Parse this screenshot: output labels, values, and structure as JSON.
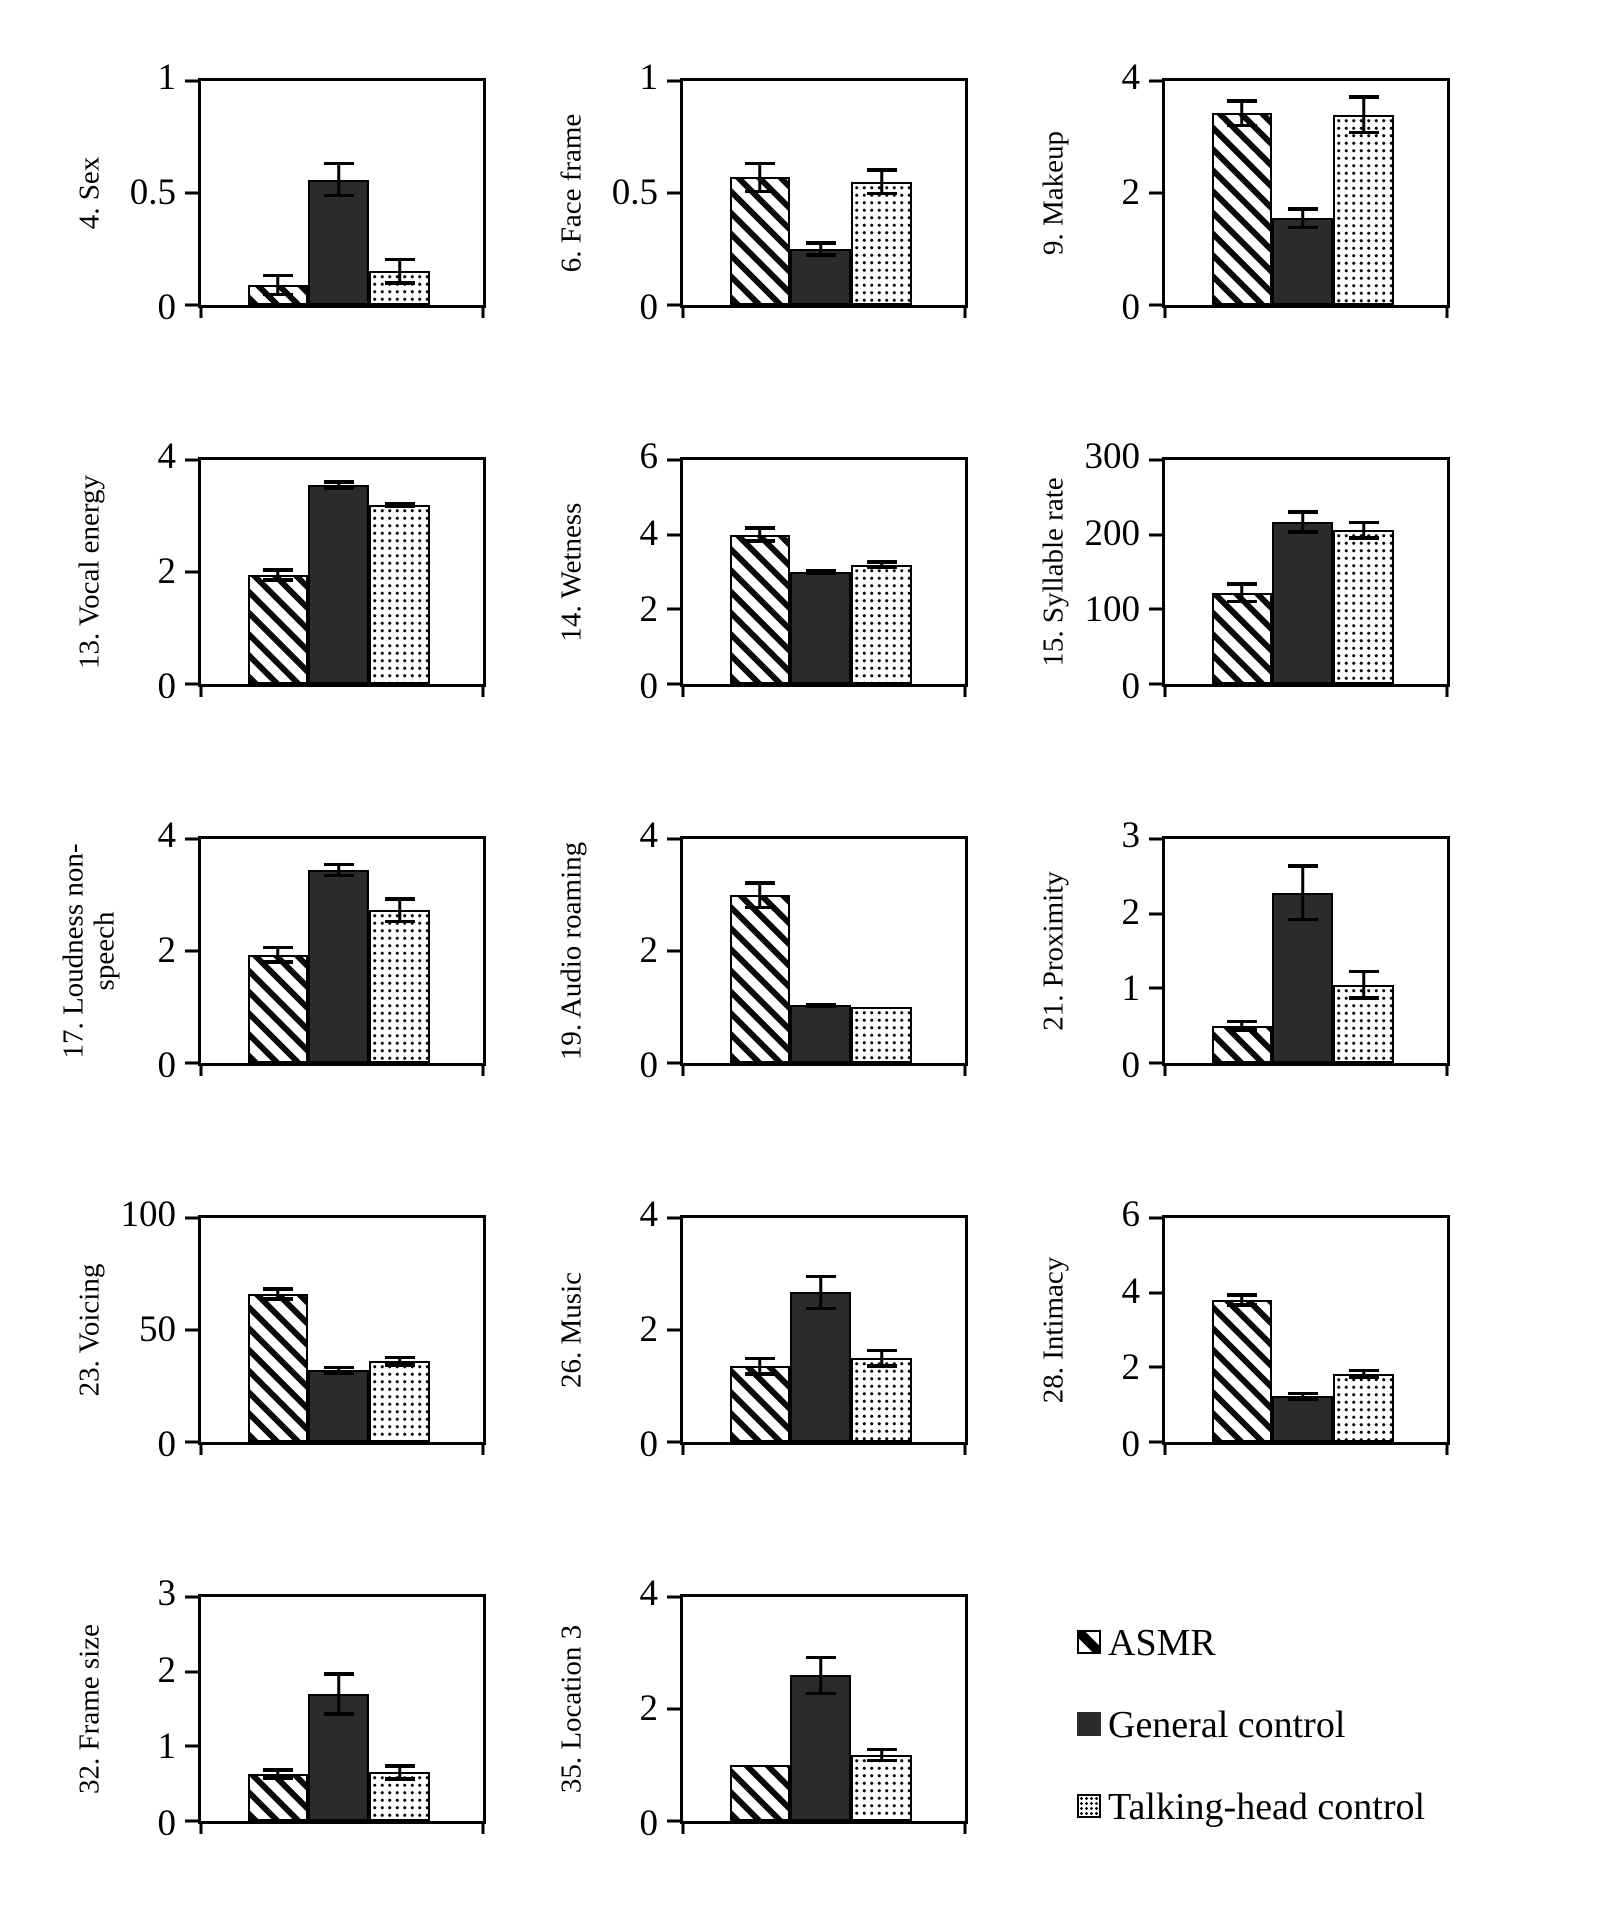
{
  "colors": {
    "ink": "#000000",
    "bar_dark": "#2b2b2b",
    "background": "#ffffff"
  },
  "series": [
    {
      "name": "ASMR",
      "pattern": "hatch"
    },
    {
      "name": "General control",
      "pattern": "solid"
    },
    {
      "name": "Talking-head control",
      "pattern": "dots"
    }
  ],
  "legend": {
    "items": [
      "ASMR",
      "General control",
      "Talking-head control"
    ],
    "position": "bottom-right"
  },
  "chart_data": [
    {
      "type": "bar",
      "label": [
        "4. Sex"
      ],
      "ylim": [
        0,
        1
      ],
      "yticks": [
        {
          "v": 1,
          "label": "1"
        },
        {
          "v": 0.5,
          "label": "0.5"
        },
        {
          "v": 0,
          "label": "0"
        }
      ],
      "values": [
        0.09,
        0.56,
        0.15
      ],
      "errors": [
        0.05,
        0.08,
        0.06
      ]
    },
    {
      "type": "bar",
      "label": [
        "6. Face frame"
      ],
      "ylim": [
        0,
        1
      ],
      "yticks": [
        {
          "v": 1,
          "label": "1"
        },
        {
          "v": 0.5,
          "label": "0.5"
        },
        {
          "v": 0,
          "label": "0"
        }
      ],
      "values": [
        0.57,
        0.25,
        0.55
      ],
      "errors": [
        0.07,
        0.035,
        0.06
      ]
    },
    {
      "type": "bar",
      "label": [
        "9. Makeup"
      ],
      "ylim": [
        0,
        4
      ],
      "yticks": [
        {
          "v": 4,
          "label": "4"
        },
        {
          "v": 2,
          "label": "2"
        },
        {
          "v": 0,
          "label": "0"
        }
      ],
      "values": [
        3.42,
        1.55,
        3.4
      ],
      "errors": [
        0.25,
        0.2,
        0.35
      ]
    },
    {
      "type": "bar",
      "label": [
        "13. Vocal energy"
      ],
      "ylim": [
        0,
        4
      ],
      "yticks": [
        {
          "v": 4,
          "label": "4"
        },
        {
          "v": 2,
          "label": "2"
        },
        {
          "v": 0,
          "label": "0"
        }
      ],
      "values": [
        1.95,
        3.55,
        3.2
      ],
      "errors": [
        0.12,
        0.09,
        0.05
      ]
    },
    {
      "type": "bar",
      "label": [
        "14. Wetness"
      ],
      "ylim": [
        0,
        6
      ],
      "yticks": [
        {
          "v": 6,
          "label": "6"
        },
        {
          "v": 4,
          "label": "4"
        },
        {
          "v": 2,
          "label": "2"
        },
        {
          "v": 0,
          "label": "0"
        }
      ],
      "values": [
        4.0,
        3.0,
        3.2
      ],
      "errors": [
        0.22,
        0.07,
        0.12
      ]
    },
    {
      "type": "bar",
      "label": [
        "15. Syllable rate"
      ],
      "ylim": [
        0,
        300
      ],
      "yticks": [
        {
          "v": 300,
          "label": "300"
        },
        {
          "v": 200,
          "label": "200"
        },
        {
          "v": 100,
          "label": "100"
        },
        {
          "v": 0,
          "label": "0"
        }
      ],
      "values": [
        122,
        217,
        206
      ],
      "errors": [
        14,
        16,
        13
      ]
    },
    {
      "type": "bar",
      "label": [
        "17. Loudness non-",
        "speech"
      ],
      "ylim": [
        0,
        4
      ],
      "yticks": [
        {
          "v": 4,
          "label": "4"
        },
        {
          "v": 2,
          "label": "2"
        },
        {
          "v": 0,
          "label": "0"
        }
      ],
      "values": [
        1.93,
        3.45,
        2.73
      ],
      "errors": [
        0.16,
        0.13,
        0.23
      ]
    },
    {
      "type": "bar",
      "label": [
        "19. Audio roaming"
      ],
      "ylim": [
        0,
        4
      ],
      "yticks": [
        {
          "v": 4,
          "label": "4"
        },
        {
          "v": 2,
          "label": "2"
        },
        {
          "v": 0,
          "label": "0"
        }
      ],
      "values": [
        3.0,
        1.03,
        1.0
      ],
      "errors": [
        0.25,
        0.05,
        null
      ]
    },
    {
      "type": "bar",
      "label": [
        "21. Proximity"
      ],
      "ylim": [
        0,
        3
      ],
      "yticks": [
        {
          "v": 3,
          "label": "3"
        },
        {
          "v": 2,
          "label": "2"
        },
        {
          "v": 1,
          "label": "1"
        },
        {
          "v": 0,
          "label": "0"
        }
      ],
      "values": [
        0.5,
        2.28,
        1.05
      ],
      "errors": [
        0.08,
        0.38,
        0.2
      ]
    },
    {
      "type": "bar",
      "label": [
        "23. Voicing"
      ],
      "ylim": [
        0,
        100
      ],
      "yticks": [
        {
          "v": 100,
          "label": "100"
        },
        {
          "v": 50,
          "label": "50"
        },
        {
          "v": 0,
          "label": "0"
        }
      ],
      "values": [
        66,
        32,
        36
      ],
      "errors": [
        3,
        2,
        2.5
      ]
    },
    {
      "type": "bar",
      "label": [
        "26. Music"
      ],
      "ylim": [
        0,
        4
      ],
      "yticks": [
        {
          "v": 4,
          "label": "4"
        },
        {
          "v": 2,
          "label": "2"
        },
        {
          "v": 0,
          "label": "0"
        }
      ],
      "values": [
        1.35,
        2.67,
        1.5
      ],
      "errors": [
        0.17,
        0.32,
        0.17
      ]
    },
    {
      "type": "bar",
      "label": [
        "28. Intimacy"
      ],
      "ylim": [
        0,
        6
      ],
      "yticks": [
        {
          "v": 6,
          "label": "6"
        },
        {
          "v": 4,
          "label": "4"
        },
        {
          "v": 2,
          "label": "2"
        },
        {
          "v": 0,
          "label": "0"
        }
      ],
      "values": [
        3.8,
        1.22,
        1.83
      ],
      "errors": [
        0.18,
        0.12,
        0.13
      ]
    },
    {
      "type": "bar",
      "label": [
        "32. Frame size"
      ],
      "ylim": [
        0,
        3
      ],
      "yticks": [
        {
          "v": 3,
          "label": "3"
        },
        {
          "v": 2,
          "label": "2"
        },
        {
          "v": 1,
          "label": "1"
        },
        {
          "v": 0,
          "label": "0"
        }
      ],
      "values": [
        0.63,
        1.7,
        0.65
      ],
      "errors": [
        0.08,
        0.29,
        0.11
      ]
    },
    {
      "type": "bar",
      "label": [
        "35. Location 3"
      ],
      "ylim": [
        0,
        4
      ],
      "yticks": [
        {
          "v": 4,
          "label": "4"
        },
        {
          "v": 2,
          "label": "2"
        },
        {
          "v": 0,
          "label": "0"
        }
      ],
      "values": [
        1.0,
        2.6,
        1.18
      ],
      "errors": [
        null,
        0.35,
        0.13
      ]
    }
  ]
}
